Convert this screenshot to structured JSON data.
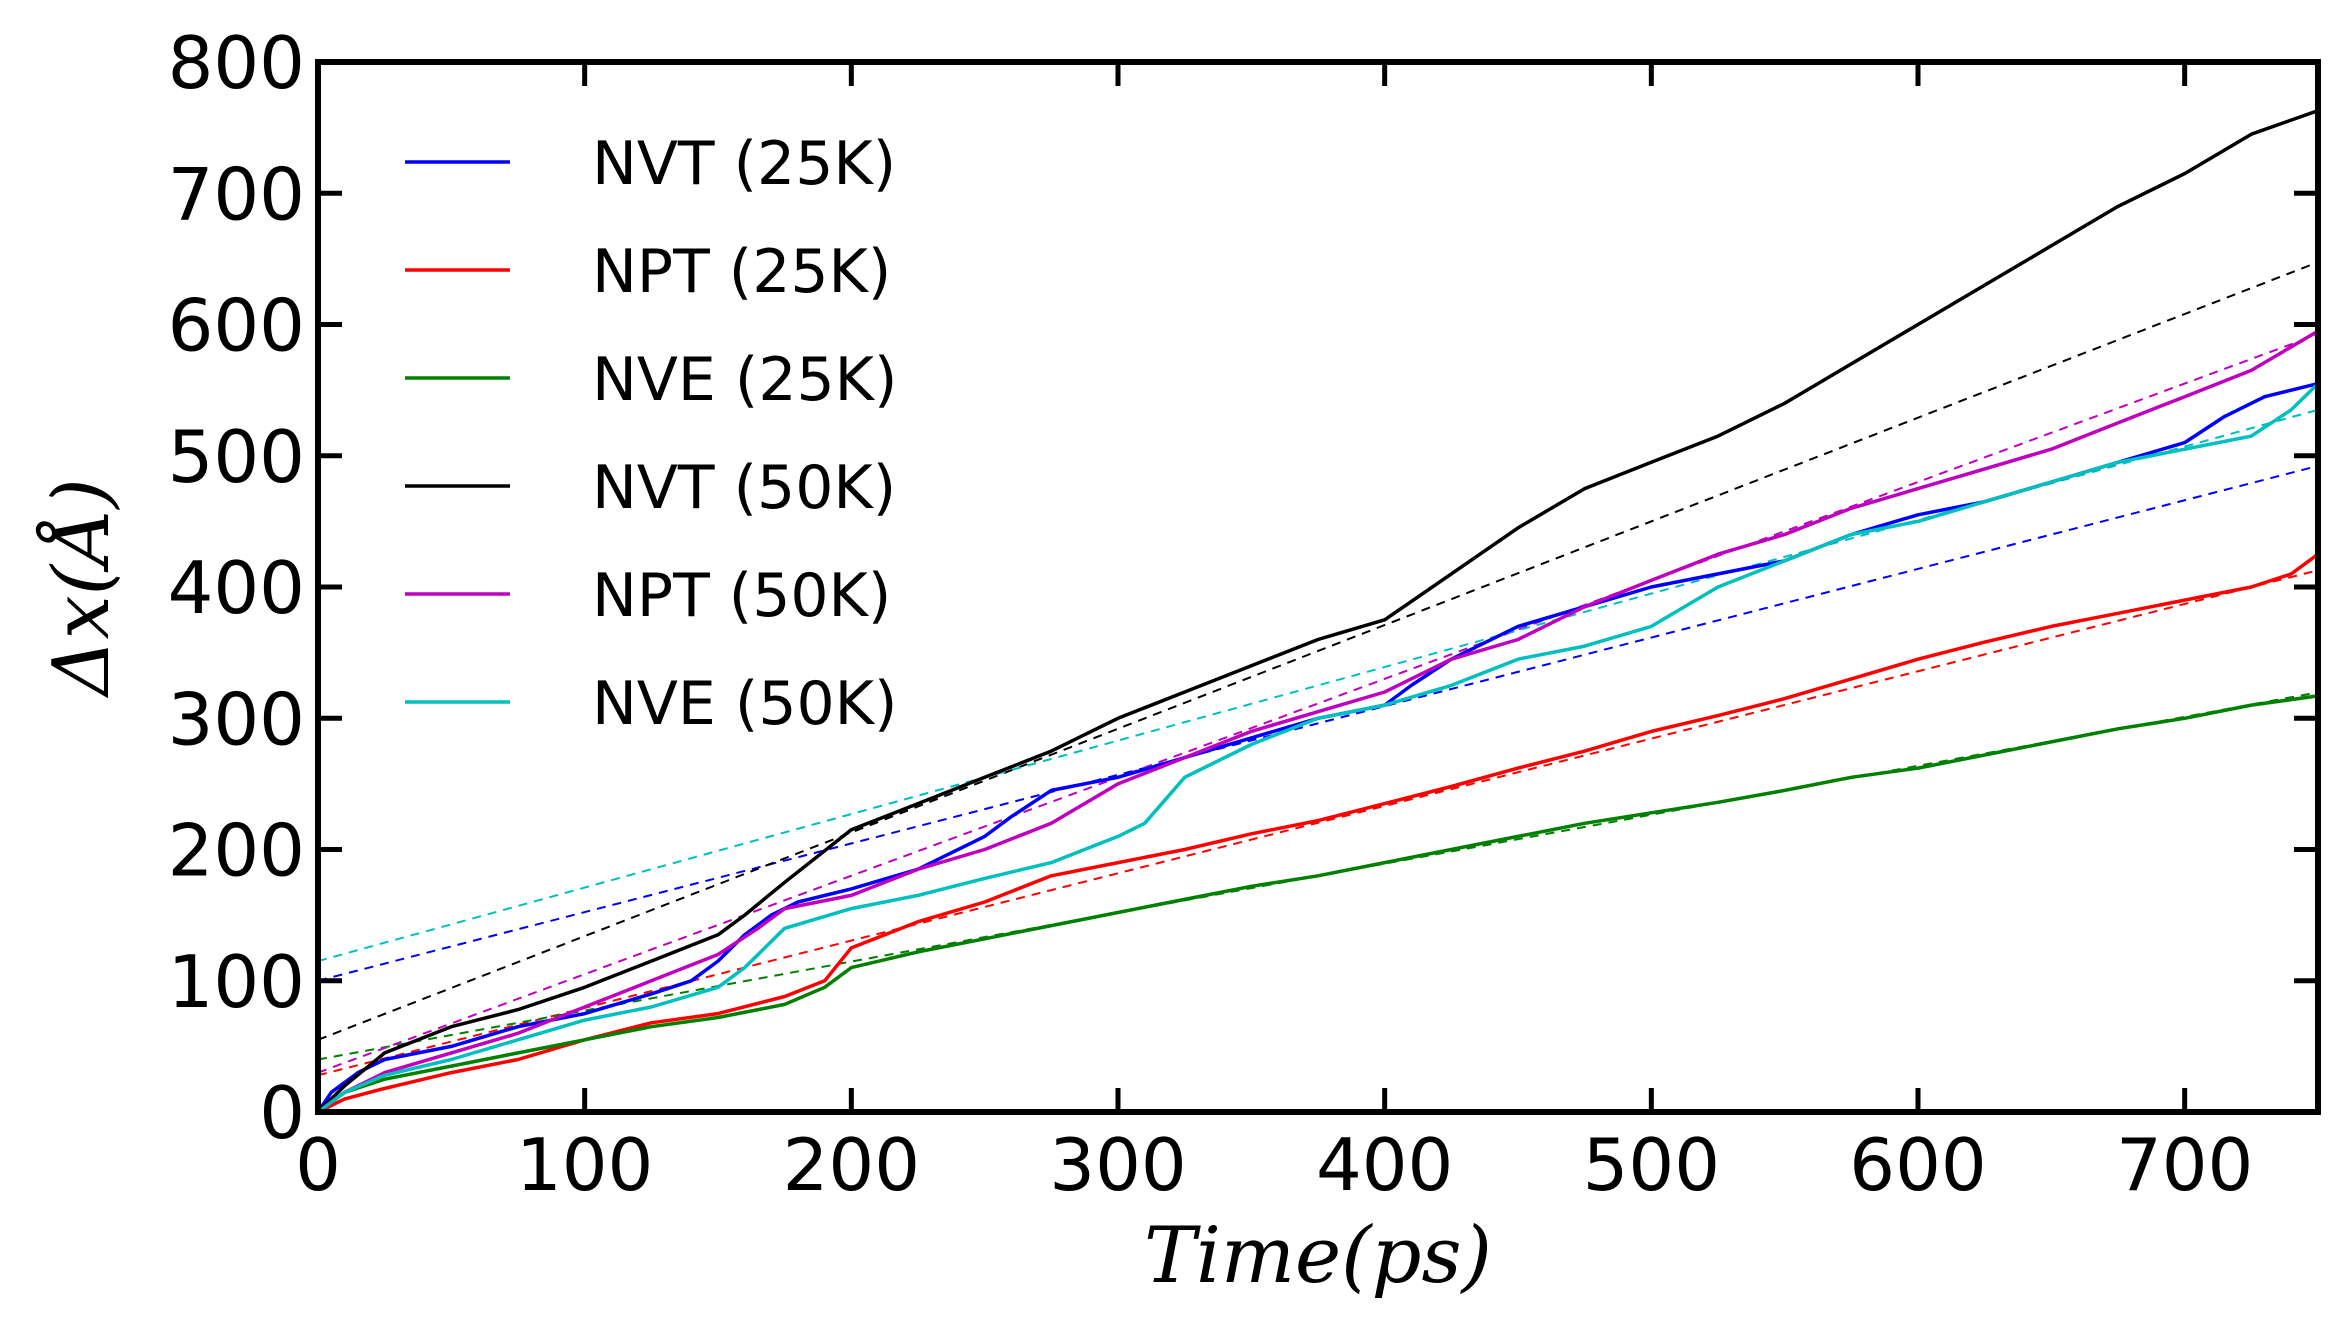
{
  "chart_data": {
    "type": "line",
    "title": "",
    "xlabel": "Time(ps)",
    "ylabel": "Δx(Å)",
    "xlim": [
      0,
      750
    ],
    "ylim": [
      0,
      800
    ],
    "xticks": [
      0,
      100,
      200,
      300,
      400,
      500,
      600,
      700
    ],
    "yticks": [
      0,
      100,
      200,
      300,
      400,
      500,
      600,
      700,
      800
    ],
    "legend_position": "top-left",
    "series": [
      {
        "name": "NVT (25K)",
        "color": "#0000ff",
        "x": [
          0,
          5,
          15,
          25,
          50,
          75,
          100,
          125,
          140,
          150,
          160,
          170,
          180,
          200,
          225,
          250,
          260,
          275,
          300,
          325,
          350,
          375,
          400,
          410,
          425,
          450,
          475,
          500,
          525,
          550,
          575,
          600,
          625,
          650,
          675,
          700,
          715,
          730,
          750
        ],
        "y": [
          0,
          15,
          30,
          40,
          50,
          65,
          75,
          90,
          100,
          115,
          135,
          150,
          160,
          170,
          185,
          210,
          225,
          245,
          255,
          270,
          285,
          300,
          310,
          325,
          345,
          370,
          385,
          400,
          410,
          420,
          440,
          455,
          465,
          480,
          495,
          510,
          530,
          545,
          555
        ],
        "fit": {
          "intercept": 100,
          "slope": 0.523
        }
      },
      {
        "name": "NPT (25K)",
        "color": "#ff0000",
        "x": [
          0,
          10,
          25,
          50,
          75,
          100,
          125,
          150,
          175,
          190,
          200,
          225,
          250,
          275,
          300,
          325,
          350,
          375,
          400,
          425,
          450,
          475,
          500,
          525,
          550,
          575,
          600,
          625,
          650,
          675,
          700,
          725,
          740,
          750
        ],
        "y": [
          0,
          10,
          18,
          30,
          40,
          55,
          68,
          75,
          88,
          100,
          125,
          145,
          160,
          180,
          190,
          200,
          212,
          222,
          235,
          248,
          262,
          275,
          290,
          302,
          315,
          330,
          345,
          358,
          370,
          380,
          390,
          400,
          410,
          425
        ],
        "fit": {
          "intercept": 28,
          "slope": 0.513
        }
      },
      {
        "name": "NVE (25K)",
        "color": "#008000",
        "x": [
          0,
          10,
          25,
          50,
          75,
          100,
          125,
          150,
          175,
          190,
          200,
          225,
          250,
          275,
          300,
          325,
          350,
          375,
          400,
          425,
          450,
          475,
          500,
          525,
          550,
          575,
          600,
          625,
          650,
          675,
          700,
          725,
          750
        ],
        "y": [
          0,
          15,
          25,
          35,
          45,
          55,
          65,
          72,
          82,
          95,
          110,
          122,
          132,
          142,
          152,
          162,
          172,
          180,
          190,
          200,
          210,
          220,
          228,
          236,
          245,
          255,
          262,
          272,
          282,
          292,
          300,
          310,
          317
        ],
        "fit": {
          "intercept": 40,
          "slope": 0.373
        }
      },
      {
        "name": "NVT (50K)",
        "color": "#000000",
        "x": [
          0,
          10,
          25,
          50,
          75,
          100,
          125,
          150,
          160,
          175,
          200,
          225,
          250,
          275,
          300,
          325,
          350,
          375,
          400,
          425,
          450,
          475,
          500,
          525,
          550,
          575,
          600,
          625,
          650,
          675,
          700,
          725,
          750
        ],
        "y": [
          0,
          20,
          45,
          65,
          78,
          95,
          115,
          135,
          150,
          175,
          215,
          235,
          255,
          275,
          300,
          320,
          340,
          360,
          375,
          410,
          445,
          475,
          495,
          515,
          540,
          570,
          600,
          630,
          660,
          690,
          715,
          745,
          763
        ],
        "fit": {
          "intercept": 55,
          "slope": 0.79
        }
      },
      {
        "name": "NPT (50K)",
        "color": "#bf00bf",
        "x": [
          0,
          10,
          25,
          50,
          75,
          100,
          125,
          150,
          165,
          175,
          200,
          225,
          250,
          275,
          300,
          325,
          350,
          375,
          400,
          425,
          450,
          475,
          500,
          525,
          550,
          575,
          600,
          625,
          650,
          675,
          700,
          725,
          750
        ],
        "y": [
          0,
          15,
          30,
          45,
          60,
          80,
          100,
          120,
          140,
          155,
          165,
          185,
          200,
          220,
          250,
          270,
          290,
          305,
          320,
          345,
          360,
          385,
          405,
          425,
          440,
          460,
          475,
          490,
          505,
          525,
          545,
          565,
          595
        ],
        "fit": {
          "intercept": 30,
          "slope": 0.75
        }
      },
      {
        "name": "NVE (50K)",
        "color": "#00bfbf",
        "x": [
          0,
          10,
          25,
          50,
          75,
          100,
          125,
          150,
          160,
          175,
          200,
          225,
          250,
          275,
          300,
          310,
          325,
          350,
          375,
          400,
          425,
          450,
          475,
          500,
          525,
          550,
          575,
          600,
          625,
          650,
          675,
          700,
          725,
          740,
          750
        ],
        "y": [
          0,
          15,
          28,
          40,
          55,
          70,
          80,
          95,
          110,
          140,
          155,
          165,
          178,
          190,
          210,
          220,
          255,
          280,
          300,
          310,
          325,
          345,
          355,
          370,
          400,
          420,
          440,
          450,
          465,
          480,
          495,
          505,
          515,
          535,
          555
        ],
        "fit": {
          "intercept": 115,
          "slope": 0.56
        }
      }
    ]
  }
}
